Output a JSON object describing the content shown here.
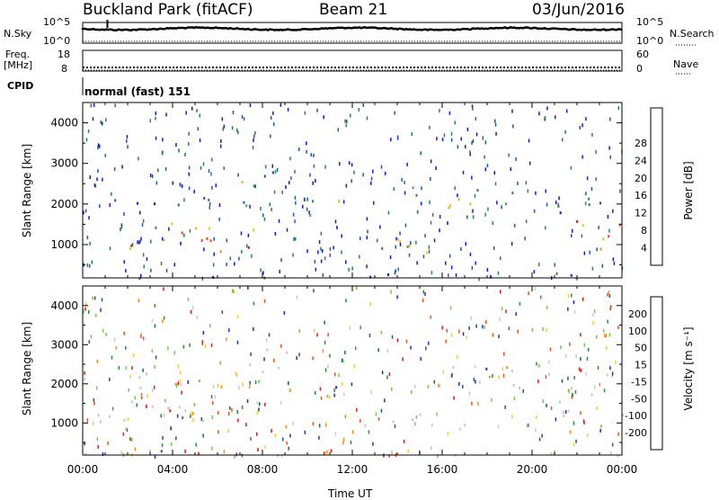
{
  "header": {
    "station": "Buckland Park (fitACF)",
    "beam": "Beam 21",
    "date": "03/Jun/2016"
  },
  "noise_panel": {
    "left_label": "N.Sky",
    "right_label": "N.Search",
    "left_ticks": [
      "10^5",
      "10^0"
    ],
    "right_ticks": [
      "10^5",
      "10^0"
    ]
  },
  "freq_panel": {
    "left_label_1": "Freq.",
    "left_label_2": "[MHz]",
    "left_ticks": [
      "18",
      "8"
    ],
    "right_ticks": [
      "60",
      "0"
    ],
    "right_label": "Nave"
  },
  "cpid_panel": {
    "label": "CPID",
    "mode": "normal (fast) 151"
  },
  "chart_data": [
    {
      "type": "heatmap",
      "quantity": "Power",
      "ylabel": "Slant Range [km]",
      "xlabel": "",
      "yticks": [
        "1000",
        "2000",
        "3000",
        "4000"
      ],
      "ylim": [
        180,
        4500
      ],
      "xticks": [
        "00:00",
        "04:00",
        "08:00",
        "12:00",
        "16:00",
        "20:00",
        "00:00"
      ],
      "xlim_hours": [
        0,
        24
      ],
      "colorbar": {
        "label": "Power [dB]",
        "tick_labels": [
          "4",
          "8",
          "12",
          "16",
          "20",
          "24",
          "28"
        ],
        "colors": [
          "#1414e6",
          "#1e5aa0",
          "#2e7d62",
          "#3cb43c",
          "#d2d21e",
          "#f0b41e",
          "#f58c14",
          "#f04614",
          "#e61414"
        ]
      },
      "echo_regions": [
        {
          "t0": 0,
          "t1": 7.6,
          "r0": 850,
          "r1": 1400,
          "level": "high"
        },
        {
          "t0": 0,
          "t1": 7.6,
          "r0": 1400,
          "r1": 1650,
          "level": "mid"
        },
        {
          "t0": 0,
          "t1": 7.4,
          "r0": 1900,
          "r1": 2300,
          "level": "low"
        },
        {
          "t0": 7.0,
          "t1": 8.3,
          "r0": 1300,
          "r1": 2700,
          "level": "mid"
        },
        {
          "t0": 8.0,
          "t1": 9.2,
          "r0": 2200,
          "r1": 3100,
          "level": "low"
        },
        {
          "t0": 9.0,
          "t1": 11.8,
          "r0": 1700,
          "r1": 2200,
          "level": "mid"
        },
        {
          "t0": 12.2,
          "t1": 17.3,
          "r0": 800,
          "r1": 1250,
          "level": "mid"
        },
        {
          "t0": 14.3,
          "t1": 19.4,
          "r0": 1700,
          "r1": 2500,
          "level": "mid"
        },
        {
          "t0": 20.6,
          "t1": 24,
          "r0": 900,
          "r1": 1600,
          "level": "high"
        },
        {
          "t0": 20.6,
          "t1": 24,
          "r0": 1700,
          "r1": 2300,
          "level": "low"
        },
        {
          "t0": 0,
          "t1": 24,
          "r0": 180,
          "r1": 330,
          "level": "low"
        }
      ]
    },
    {
      "type": "heatmap",
      "quantity": "Velocity",
      "ylabel": "Slant Range [km]",
      "xlabel": "Time UT",
      "yticks": [
        "1000",
        "2000",
        "3000",
        "4000"
      ],
      "ylim": [
        180,
        4500
      ],
      "xticks": [
        "00:00",
        "04:00",
        "08:00",
        "12:00",
        "16:00",
        "20:00",
        "00:00"
      ],
      "xlim_hours": [
        0,
        24
      ],
      "colorbar": {
        "label": "Velocity [m s⁻¹]",
        "tick_labels": [
          "200",
          "100",
          "50",
          "15",
          "-15",
          "-50",
          "-100",
          "-200"
        ],
        "colors": [
          "#2828c8",
          "#1e6450",
          "#288c3c",
          "#78c850",
          "#c8c8c8",
          "#fac83c",
          "#f58c14",
          "#f05014",
          "#e61414"
        ]
      }
    }
  ]
}
